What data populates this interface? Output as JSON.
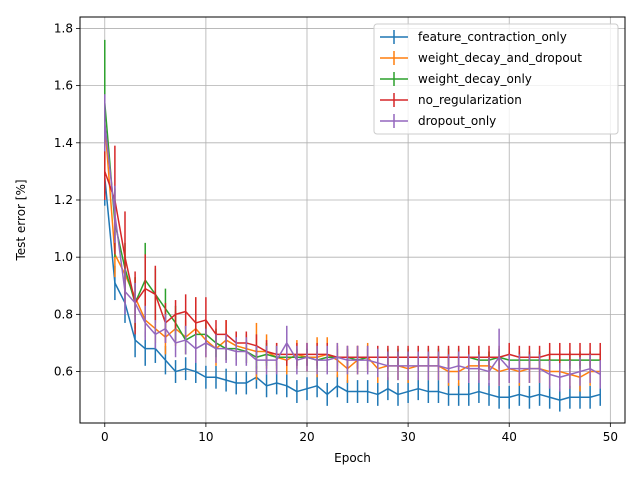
{
  "chart_data": {
    "type": "line",
    "xlabel": "Epoch",
    "ylabel": "Test error [%]",
    "xlim": [
      -2.45,
      51.45
    ],
    "ylim": [
      0.42,
      1.84
    ],
    "xticks": [
      0,
      10,
      20,
      30,
      40,
      50
    ],
    "yticks": [
      0.6,
      0.8,
      1.0,
      1.2,
      1.4,
      1.6,
      1.8
    ],
    "xtick_labels": [
      "0",
      "10",
      "20",
      "30",
      "40",
      "50"
    ],
    "ytick_labels": [
      "0.6",
      "0.8",
      "1.0",
      "1.2",
      "1.4",
      "1.6",
      "1.8"
    ],
    "grid": true,
    "legend_position": "top-right",
    "x": [
      0,
      1,
      2,
      3,
      4,
      5,
      6,
      7,
      8,
      9,
      10,
      11,
      12,
      13,
      14,
      15,
      16,
      17,
      18,
      19,
      20,
      21,
      22,
      23,
      24,
      25,
      26,
      27,
      28,
      29,
      30,
      31,
      32,
      33,
      34,
      35,
      36,
      37,
      38,
      39,
      40,
      41,
      42,
      43,
      44,
      45,
      46,
      47,
      48,
      49
    ],
    "series": [
      {
        "name": "feature_contraction_only",
        "color": "#1f77b4",
        "values": [
          1.28,
          0.91,
          0.84,
          0.71,
          0.68,
          0.68,
          0.64,
          0.6,
          0.61,
          0.6,
          0.58,
          0.58,
          0.57,
          0.56,
          0.56,
          0.58,
          0.55,
          0.56,
          0.55,
          0.53,
          0.54,
          0.55,
          0.52,
          0.55,
          0.53,
          0.53,
          0.53,
          0.52,
          0.54,
          0.52,
          0.53,
          0.54,
          0.53,
          0.53,
          0.52,
          0.52,
          0.52,
          0.53,
          0.52,
          0.51,
          0.51,
          0.52,
          0.51,
          0.52,
          0.51,
          0.5,
          0.51,
          0.51,
          0.51,
          0.52
        ],
        "errors": [
          0.1,
          0.06,
          0.07,
          0.06,
          0.06,
          0.05,
          0.05,
          0.04,
          0.04,
          0.04,
          0.04,
          0.04,
          0.04,
          0.04,
          0.04,
          0.04,
          0.04,
          0.04,
          0.04,
          0.04,
          0.04,
          0.04,
          0.04,
          0.04,
          0.04,
          0.04,
          0.04,
          0.04,
          0.04,
          0.04,
          0.04,
          0.04,
          0.04,
          0.04,
          0.04,
          0.04,
          0.04,
          0.04,
          0.04,
          0.04,
          0.04,
          0.04,
          0.04,
          0.04,
          0.04,
          0.04,
          0.04,
          0.04,
          0.04,
          0.04
        ]
      },
      {
        "name": "weight_decay_and_dropout",
        "color": "#ff7f0e",
        "values": [
          1.47,
          1.01,
          0.94,
          0.86,
          0.78,
          0.75,
          0.72,
          0.75,
          0.72,
          0.75,
          0.71,
          0.68,
          0.71,
          0.69,
          0.68,
          0.67,
          0.67,
          0.65,
          0.64,
          0.66,
          0.65,
          0.65,
          0.66,
          0.64,
          0.61,
          0.64,
          0.65,
          0.61,
          0.62,
          0.62,
          0.61,
          0.62,
          0.62,
          0.62,
          0.6,
          0.6,
          0.62,
          0.62,
          0.62,
          0.6,
          0.61,
          0.6,
          0.61,
          0.61,
          0.6,
          0.6,
          0.59,
          0.58,
          0.6,
          0.6
        ],
        "errors": [
          0.07,
          0.08,
          0.07,
          0.07,
          0.06,
          0.05,
          0.06,
          0.06,
          0.06,
          0.11,
          0.06,
          0.06,
          0.07,
          0.05,
          0.05,
          0.1,
          0.06,
          0.05,
          0.05,
          0.05,
          0.05,
          0.07,
          0.06,
          0.06,
          0.05,
          0.05,
          0.05,
          0.05,
          0.05,
          0.05,
          0.05,
          0.05,
          0.05,
          0.05,
          0.05,
          0.05,
          0.05,
          0.05,
          0.05,
          0.05,
          0.05,
          0.05,
          0.05,
          0.05,
          0.05,
          0.05,
          0.05,
          0.05,
          0.05,
          0.05
        ]
      },
      {
        "name": "weight_decay_only",
        "color": "#2ca02c",
        "values": [
          1.54,
          1.12,
          0.96,
          0.84,
          0.92,
          0.87,
          0.82,
          0.77,
          0.71,
          0.73,
          0.73,
          0.7,
          0.68,
          0.68,
          0.67,
          0.65,
          0.66,
          0.65,
          0.65,
          0.65,
          0.65,
          0.64,
          0.65,
          0.65,
          0.65,
          0.64,
          0.65,
          0.65,
          0.65,
          0.65,
          0.65,
          0.65,
          0.65,
          0.65,
          0.65,
          0.65,
          0.65,
          0.64,
          0.64,
          0.65,
          0.64,
          0.64,
          0.64,
          0.64,
          0.64,
          0.64,
          0.64,
          0.64,
          0.64,
          0.64
        ],
        "errors": [
          0.22,
          0.12,
          0.09,
          0.09,
          0.13,
          0.09,
          0.07,
          0.06,
          0.05,
          0.05,
          0.05,
          0.05,
          0.04,
          0.04,
          0.04,
          0.04,
          0.04,
          0.04,
          0.03,
          0.03,
          0.03,
          0.03,
          0.03,
          0.03,
          0.03,
          0.03,
          0.03,
          0.03,
          0.03,
          0.03,
          0.03,
          0.03,
          0.03,
          0.03,
          0.03,
          0.03,
          0.03,
          0.03,
          0.03,
          0.03,
          0.03,
          0.03,
          0.03,
          0.03,
          0.03,
          0.03,
          0.03,
          0.03,
          0.03,
          0.03
        ]
      },
      {
        "name": "no_regularization",
        "color": "#d62728",
        "values": [
          1.3,
          1.2,
          1.0,
          0.84,
          0.89,
          0.87,
          0.77,
          0.8,
          0.81,
          0.77,
          0.78,
          0.73,
          0.73,
          0.7,
          0.7,
          0.69,
          0.67,
          0.66,
          0.66,
          0.66,
          0.66,
          0.66,
          0.66,
          0.65,
          0.65,
          0.65,
          0.65,
          0.65,
          0.65,
          0.65,
          0.65,
          0.65,
          0.65,
          0.65,
          0.65,
          0.65,
          0.65,
          0.65,
          0.65,
          0.65,
          0.66,
          0.65,
          0.65,
          0.65,
          0.66,
          0.66,
          0.66,
          0.66,
          0.66,
          0.66
        ],
        "errors": [
          0.1,
          0.19,
          0.16,
          0.11,
          0.12,
          0.1,
          0.07,
          0.05,
          0.06,
          0.09,
          0.08,
          0.05,
          0.05,
          0.04,
          0.04,
          0.04,
          0.04,
          0.04,
          0.04,
          0.04,
          0.04,
          0.04,
          0.04,
          0.04,
          0.04,
          0.04,
          0.04,
          0.04,
          0.04,
          0.04,
          0.04,
          0.04,
          0.04,
          0.04,
          0.04,
          0.04,
          0.04,
          0.04,
          0.04,
          0.04,
          0.04,
          0.04,
          0.04,
          0.04,
          0.04,
          0.04,
          0.04,
          0.04,
          0.04,
          0.04
        ]
      },
      {
        "name": "dropout_only",
        "color": "#9467bd",
        "values": [
          1.47,
          1.15,
          0.88,
          0.84,
          0.77,
          0.73,
          0.75,
          0.7,
          0.71,
          0.68,
          0.7,
          0.68,
          0.68,
          0.67,
          0.67,
          0.64,
          0.64,
          0.64,
          0.7,
          0.64,
          0.65,
          0.64,
          0.64,
          0.65,
          0.64,
          0.64,
          0.64,
          0.63,
          0.62,
          0.62,
          0.62,
          0.62,
          0.62,
          0.62,
          0.61,
          0.62,
          0.61,
          0.61,
          0.6,
          0.65,
          0.61,
          0.61,
          0.61,
          0.61,
          0.59,
          0.58,
          0.59,
          0.6,
          0.61,
          0.59
        ],
        "errors": [
          0.1,
          0.1,
          0.08,
          0.07,
          0.06,
          0.05,
          0.05,
          0.05,
          0.05,
          0.05,
          0.05,
          0.05,
          0.05,
          0.05,
          0.05,
          0.05,
          0.05,
          0.05,
          0.06,
          0.05,
          0.05,
          0.05,
          0.05,
          0.05,
          0.05,
          0.05,
          0.05,
          0.05,
          0.05,
          0.05,
          0.05,
          0.05,
          0.05,
          0.05,
          0.05,
          0.05,
          0.05,
          0.05,
          0.05,
          0.1,
          0.05,
          0.05,
          0.05,
          0.05,
          0.05,
          0.05,
          0.05,
          0.05,
          0.05,
          0.05
        ]
      }
    ]
  }
}
